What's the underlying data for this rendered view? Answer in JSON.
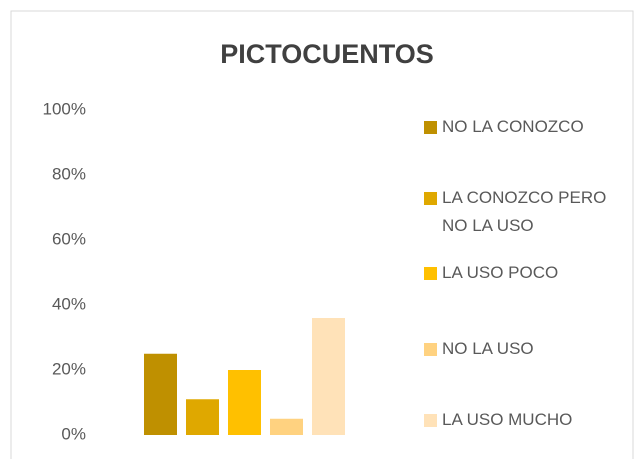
{
  "chart_data": {
    "type": "bar",
    "title": "PICTOCUENTOS",
    "categories": [
      null
    ],
    "series": [
      {
        "name": "NO LA CONOZCO",
        "color": "#bf9000",
        "values": [
          25
        ]
      },
      {
        "name": "LA CONOZCO PERO NO LA USO",
        "color": "#dfa800",
        "values": [
          11
        ]
      },
      {
        "name": "LA USO POCO",
        "color": "#ffc000",
        "values": [
          20
        ]
      },
      {
        "name": "NO LA USO",
        "color": "#ffd280",
        "values": [
          5
        ]
      },
      {
        "name": "LA USO MUCHO",
        "color": "#ffe2b8",
        "values": [
          36
        ]
      }
    ],
    "ylim": [
      0,
      100
    ],
    "yticks": [
      {
        "value": 0,
        "label": "0%"
      },
      {
        "value": 20,
        "label": "20%"
      },
      {
        "value": 40,
        "label": "40%"
      },
      {
        "value": 60,
        "label": "60%"
      },
      {
        "value": 80,
        "label": "80%"
      },
      {
        "value": 100,
        "label": "100%"
      }
    ],
    "grid": false,
    "legend": "right"
  }
}
